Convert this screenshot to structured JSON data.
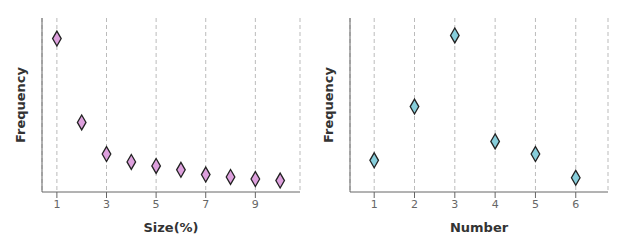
{
  "chart_data": [
    {
      "type": "scatter",
      "x": [
        1,
        2,
        3,
        4,
        5,
        6,
        7,
        8,
        9,
        10
      ],
      "values": [
        0.95,
        0.42,
        0.22,
        0.17,
        0.145,
        0.12,
        0.09,
        0.075,
        0.062,
        0.052
      ],
      "color": "#dda0dd",
      "marker": "diamond",
      "xlabel": "Size(%)",
      "ylabel": "Frequency",
      "xticks": [
        1,
        3,
        5,
        7,
        9
      ],
      "xlim": [
        0.4,
        10.8
      ],
      "ylim": [
        -0.02,
        1.08
      ],
      "grid": true,
      "tick_labels": "x"
    },
    {
      "type": "scatter",
      "x": [
        1,
        2,
        3,
        4,
        5,
        6
      ],
      "values": [
        0.18,
        0.52,
        0.97,
        0.3,
        0.22,
        0.07
      ],
      "color": "#87CEDB",
      "marker": "diamond",
      "xlabel": "Number",
      "ylabel": "Frequency",
      "xticks": [
        1,
        2,
        3,
        4,
        5,
        6
      ],
      "xlim": [
        0.4,
        6.8
      ],
      "ylim": [
        -0.02,
        1.08
      ],
      "grid": true,
      "tick_labels": "x"
    }
  ]
}
